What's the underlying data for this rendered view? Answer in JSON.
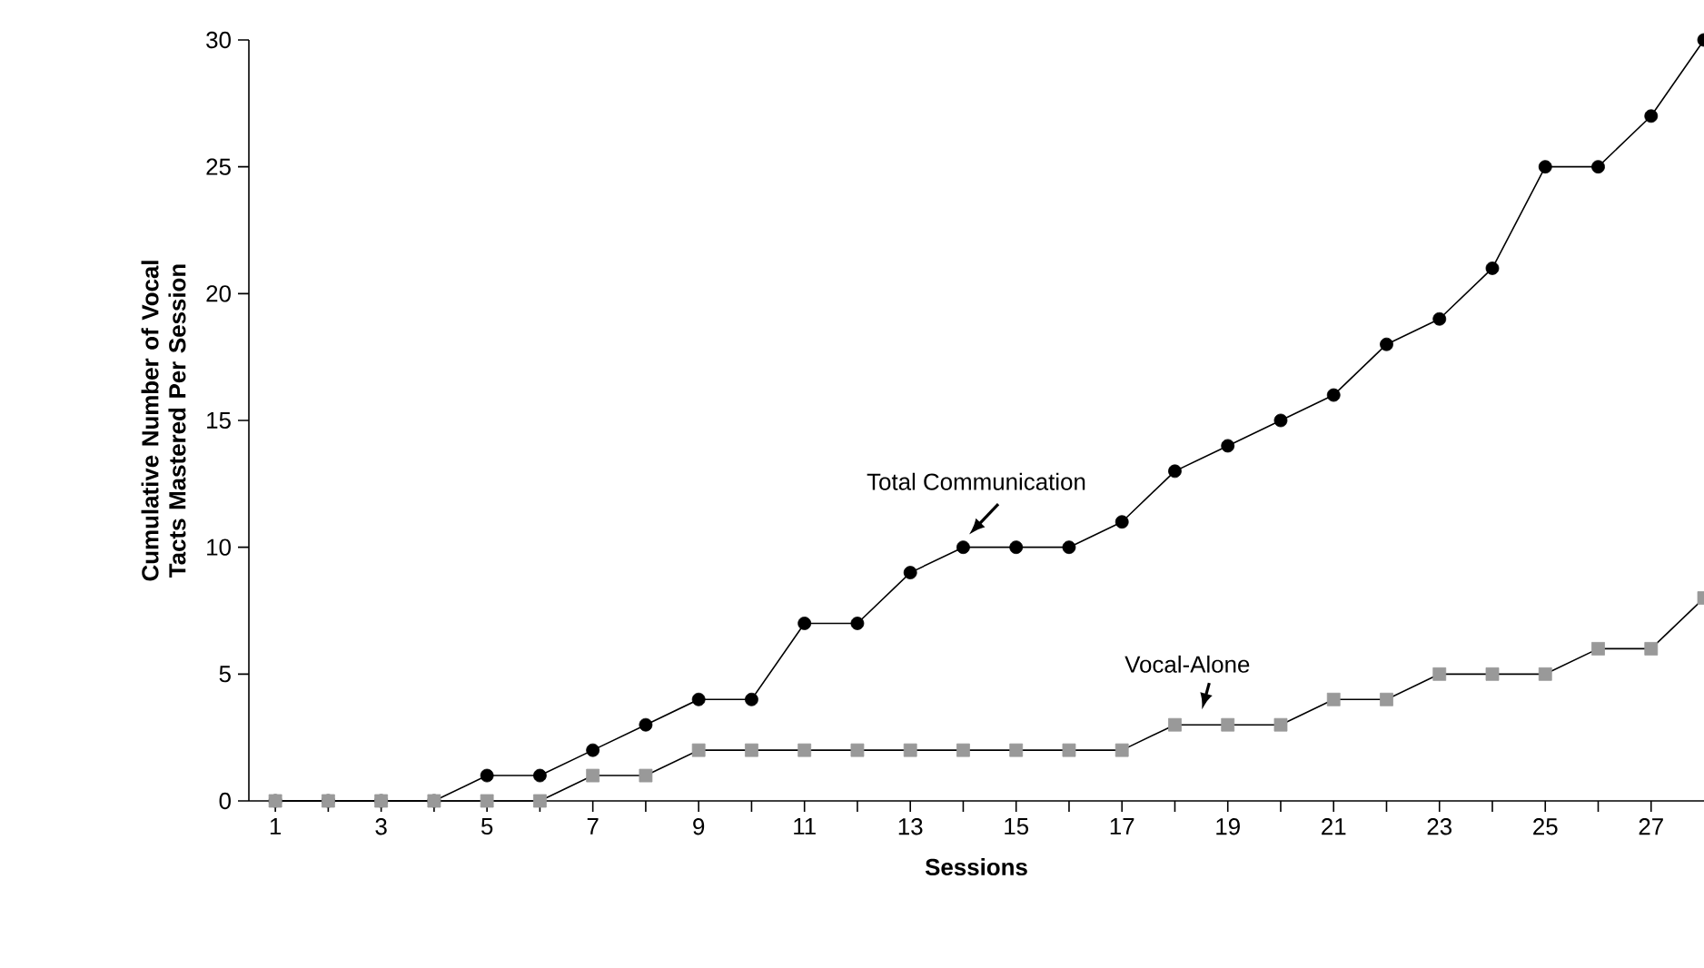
{
  "chart_data": {
    "type": "line",
    "xlabel": "Sessions",
    "ylabel": "Cumulative Number of Vocal Tacts Mastered Per Session",
    "x": [
      1,
      2,
      3,
      4,
      5,
      6,
      7,
      8,
      9,
      10,
      11,
      12,
      13,
      14,
      15,
      16,
      17,
      18,
      19,
      20,
      21,
      22,
      23,
      24,
      25,
      26,
      27,
      28
    ],
    "series": [
      {
        "name": "Total Communication",
        "color": "#000000",
        "marker": "circle",
        "values": [
          0,
          0,
          0,
          0,
          1,
          1,
          2,
          3,
          4,
          4,
          7,
          7,
          9,
          10,
          10,
          10,
          11,
          13,
          14,
          15,
          16,
          18,
          19,
          21,
          25,
          25,
          27,
          30
        ]
      },
      {
        "name": "Vocal-Alone",
        "color": "#999999",
        "marker": "square",
        "values": [
          0,
          0,
          0,
          0,
          0,
          0,
          1,
          1,
          2,
          2,
          2,
          2,
          2,
          2,
          2,
          2,
          2,
          3,
          3,
          3,
          4,
          4,
          5,
          5,
          5,
          6,
          6,
          8
        ]
      }
    ],
    "xlim": [
      0.5,
      28
    ],
    "ylim": [
      0,
      30
    ],
    "xticks": [
      1,
      {
        "value": 2,
        "label": null
      },
      3,
      {
        "value": 4,
        "label": null
      },
      5,
      {
        "value": 6,
        "label": null
      },
      7,
      {
        "value": 8,
        "label": null
      },
      9,
      {
        "value": 10,
        "label": null
      },
      11,
      {
        "value": 12,
        "label": null
      },
      13,
      {
        "value": 14,
        "label": null
      },
      15,
      {
        "value": 16,
        "label": null
      },
      17,
      {
        "value": 18,
        "label": null
      },
      19,
      {
        "value": 20,
        "label": null
      },
      21,
      {
        "value": 22,
        "label": null
      },
      23,
      {
        "value": 24,
        "label": null
      },
      25,
      {
        "value": 26,
        "label": null
      },
      27
    ],
    "yticks": [
      0,
      5,
      10,
      15,
      20,
      25,
      30
    ],
    "grid": false,
    "legend": false,
    "line_style": "solid"
  }
}
